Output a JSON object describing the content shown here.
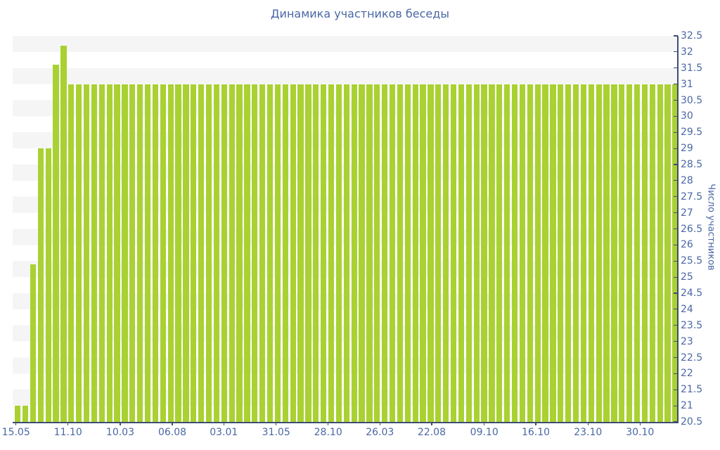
{
  "chart_data": {
    "type": "bar",
    "title": "Динамика участников беседы",
    "ylabel": "Число участников",
    "xlabel": "",
    "ylim": [
      20.5,
      32.5
    ],
    "ytick_step": 0.5,
    "grid": "alternating horizontal stripe bands, 0.5 units each, light gray / white",
    "legend": "none",
    "bar_color": "#a9d132",
    "axis_color": "#3e4d72",
    "tick_text_color": "#4a67a5",
    "stripe_color": "#f5f5f5",
    "x_ticks": [
      {
        "label": "15.05",
        "pct": 0.5
      },
      {
        "label": "11.10",
        "pct": 8.32
      },
      {
        "label": "10.03",
        "pct": 16.17
      },
      {
        "label": "06.08",
        "pct": 24.0
      },
      {
        "label": "03.01",
        "pct": 31.74
      },
      {
        "label": "31.05",
        "pct": 39.61
      },
      {
        "label": "28.10",
        "pct": 47.43
      },
      {
        "label": "26.03",
        "pct": 55.21
      },
      {
        "label": "22.08",
        "pct": 63.0
      },
      {
        "label": "09.10",
        "pct": 70.9
      },
      {
        "label": "16.10",
        "pct": 78.65
      },
      {
        "label": "23.10",
        "pct": 86.5
      },
      {
        "label": "30.10",
        "pct": 94.32
      }
    ],
    "values": [
      21,
      21,
      25.4,
      29,
      29,
      31.6,
      32.2,
      31,
      31,
      31,
      31,
      31,
      31,
      31,
      31,
      31,
      31,
      31,
      31,
      31,
      31,
      31,
      31,
      31,
      31,
      31,
      31,
      31,
      31,
      31,
      31,
      31,
      31,
      31,
      31,
      31,
      31,
      31,
      31,
      31,
      31,
      31,
      31,
      31,
      31,
      31,
      31,
      31,
      31,
      31,
      31,
      31,
      31,
      31,
      31,
      31,
      31,
      31,
      31,
      31,
      31,
      31,
      31,
      31,
      31,
      31,
      31,
      31,
      31,
      31,
      31,
      31,
      31,
      31,
      31,
      31,
      31,
      31,
      31,
      31,
      31,
      31,
      31,
      31,
      31,
      31,
      31
    ]
  }
}
